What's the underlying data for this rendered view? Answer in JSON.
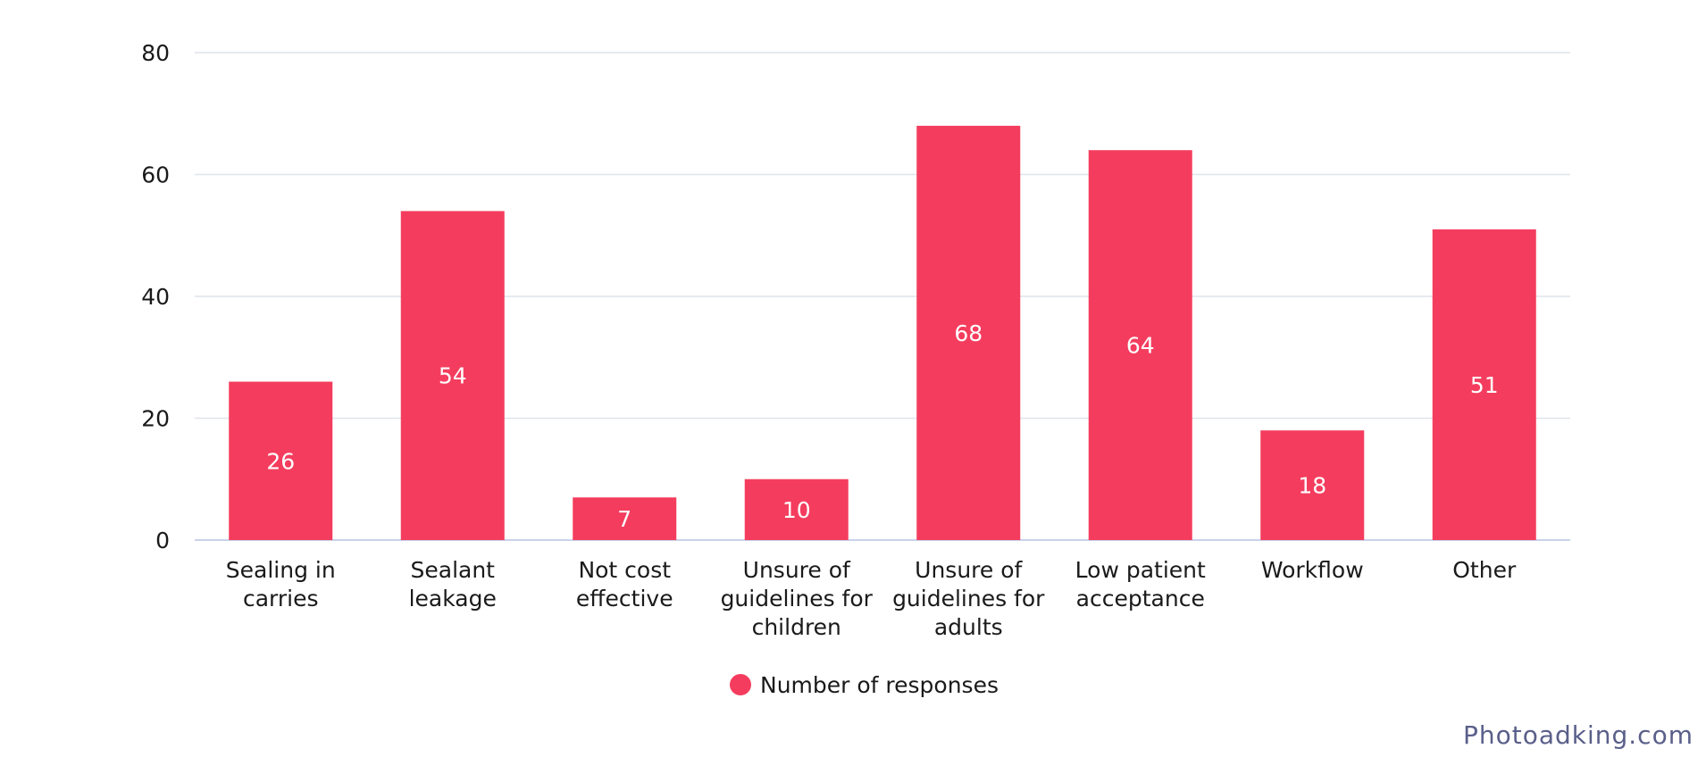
{
  "chart_data": {
    "type": "bar",
    "categories": [
      [
        "Sealing in",
        "carries"
      ],
      [
        "Sealant",
        "leakage"
      ],
      [
        "Not cost",
        "effective"
      ],
      [
        "Unsure of",
        "guidelines for",
        "children"
      ],
      [
        "Unsure of",
        "guidelines for",
        "adults"
      ],
      [
        "Low patient",
        "acceptance"
      ],
      [
        "Workflow"
      ],
      [
        "Other"
      ]
    ],
    "series": [
      {
        "name": "Number of responses",
        "values": [
          26,
          54,
          7,
          10,
          68,
          64,
          18,
          51
        ],
        "color": "#f43d5e"
      }
    ],
    "yticks": [
      "0",
      "20",
      "40",
      "60",
      "80"
    ],
    "ylim": [
      0,
      80
    ],
    "grid": true,
    "legend_position": "bottom-center",
    "data_labels": true
  },
  "watermark": "Photoadking.com",
  "colors": {
    "grid": "#dfe3ec",
    "axis": "#c8d2ea",
    "text": "#1a1a1a"
  }
}
